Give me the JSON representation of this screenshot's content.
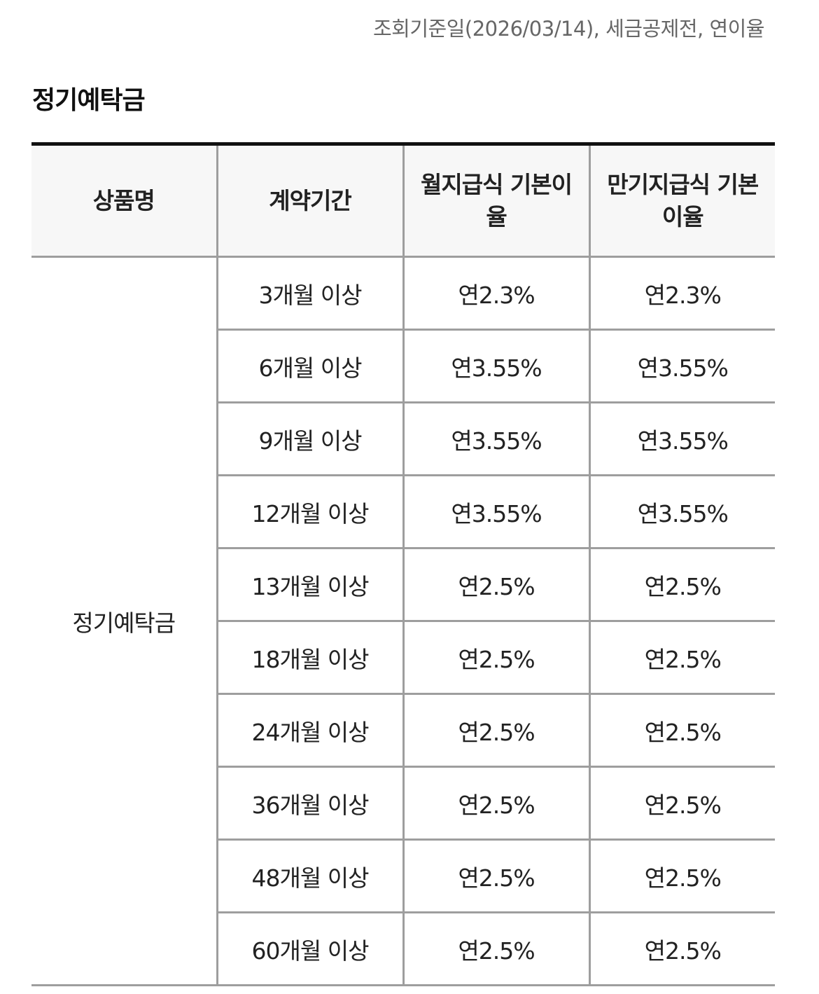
{
  "notice": "조회기준일(2026/03/14), 세금공제전, 연이율",
  "section_title": "정기예탁금",
  "table": {
    "headers": [
      "상품명",
      "계약기간",
      "월지급식 기본이율",
      "만기지급식 기본이율"
    ],
    "product_name": "정기예탁금",
    "rows": [
      {
        "term": "3개월 이상",
        "monthly": "연2.3%",
        "maturity": "연2.3%"
      },
      {
        "term": "6개월 이상",
        "monthly": "연3.55%",
        "maturity": "연3.55%"
      },
      {
        "term": "9개월 이상",
        "monthly": "연3.55%",
        "maturity": "연3.55%"
      },
      {
        "term": "12개월 이상",
        "monthly": "연3.55%",
        "maturity": "연3.55%"
      },
      {
        "term": "13개월 이상",
        "monthly": "연2.5%",
        "maturity": "연2.5%"
      },
      {
        "term": "18개월 이상",
        "monthly": "연2.5%",
        "maturity": "연2.5%"
      },
      {
        "term": "24개월 이상",
        "monthly": "연2.5%",
        "maturity": "연2.5%"
      },
      {
        "term": "36개월 이상",
        "monthly": "연2.5%",
        "maturity": "연2.5%"
      },
      {
        "term": "48개월 이상",
        "monthly": "연2.5%",
        "maturity": "연2.5%"
      },
      {
        "term": "60개월 이상",
        "monthly": "연2.5%",
        "maturity": "연2.5%"
      }
    ]
  }
}
